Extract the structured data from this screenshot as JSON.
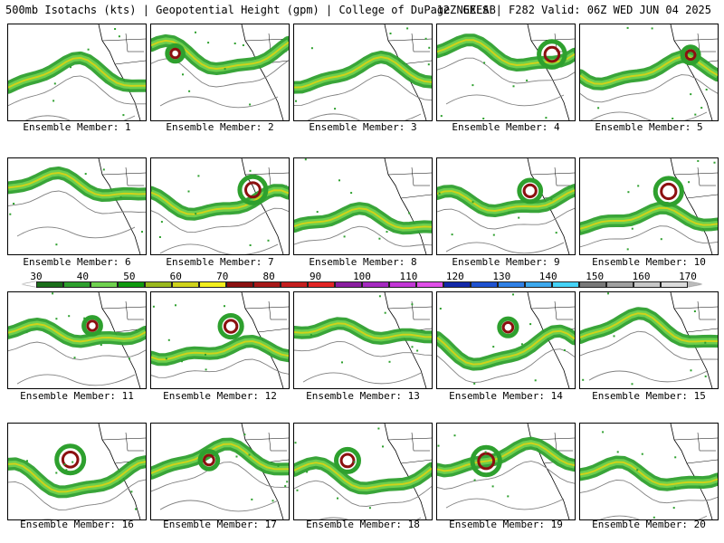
{
  "header": {
    "title": "500mb Isotachs (kts) | Geopotential Height (gpm) | College of DuPage NEXLAB",
    "run": "12Z GEFS | F282 Valid: 06Z WED JUN 04 2025"
  },
  "colorbar": {
    "labels": [
      "30",
      "40",
      "50",
      "60",
      "70",
      "80",
      "90",
      "100",
      "110",
      "120",
      "130",
      "140",
      "150",
      "160",
      "170"
    ],
    "colors": [
      "#1a6e1a",
      "#2ea02e",
      "#6fd14f",
      "#0f9a0f",
      "#9ab81d",
      "#cfd21a",
      "#f2ee1c",
      "#8b1010",
      "#a81818",
      "#c41e1e",
      "#e22525",
      "#8a1ea0",
      "#a52ac0",
      "#c237d6",
      "#e04fe8",
      "#1228a8",
      "#1f52d0",
      "#2f80e6",
      "#3da9ee",
      "#45d2f6",
      "#787878",
      "#a0a0a0",
      "#c8c8c8",
      "#dcdcdc"
    ]
  },
  "panels": [
    {
      "label": "Ensemble Member: 1"
    },
    {
      "label": "Ensemble Member: 2"
    },
    {
      "label": "Ensemble Member: 3"
    },
    {
      "label": "Ensemble Member: 4"
    },
    {
      "label": "Ensemble Member: 5"
    },
    {
      "label": "Ensemble Member: 6"
    },
    {
      "label": "Ensemble Member: 7"
    },
    {
      "label": "Ensemble Member: 8"
    },
    {
      "label": "Ensemble Member: 9"
    },
    {
      "label": "Ensemble Member: 10"
    },
    {
      "label": "Ensemble Member: 11"
    },
    {
      "label": "Ensemble Member: 12"
    },
    {
      "label": "Ensemble Member: 13"
    },
    {
      "label": "Ensemble Member: 14"
    },
    {
      "label": "Ensemble Member: 15"
    },
    {
      "label": "Ensemble Member: 16"
    },
    {
      "label": "Ensemble Member: 17"
    },
    {
      "label": "Ensemble Member: 18"
    },
    {
      "label": "Ensemble Member: 19"
    },
    {
      "label": "Ensemble Member: 20"
    }
  ]
}
